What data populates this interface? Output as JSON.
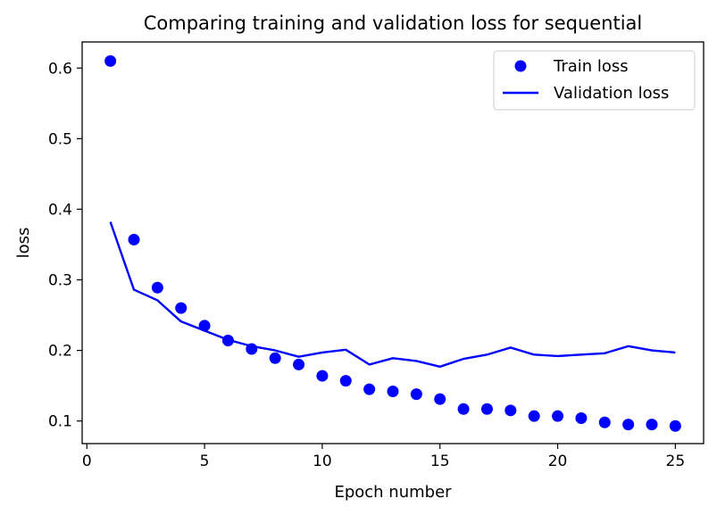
{
  "chart_data": {
    "type": "scatter",
    "title": "Comparing training and validation loss for sequential",
    "xlabel": "Epoch number",
    "ylabel": "loss",
    "xlim": [
      -0.2,
      26.2
    ],
    "ylim": [
      0.068,
      0.637
    ],
    "xticks": [
      0,
      5,
      10,
      15,
      20,
      25
    ],
    "yticks": [
      0.1,
      0.2,
      0.3,
      0.4,
      0.5,
      0.6
    ],
    "grid": false,
    "legend_position": "top-right",
    "colors": {
      "series": "#0000ff",
      "axis": "#000000",
      "background": "#ffffff"
    },
    "x": [
      1,
      2,
      3,
      4,
      5,
      6,
      7,
      8,
      9,
      10,
      11,
      12,
      13,
      14,
      15,
      16,
      17,
      18,
      19,
      20,
      21,
      22,
      23,
      24,
      25
    ],
    "series": [
      {
        "name": "Train loss",
        "style": "markers",
        "values": [
          0.61,
          0.357,
          0.289,
          0.26,
          0.235,
          0.214,
          0.202,
          0.189,
          0.18,
          0.164,
          0.157,
          0.145,
          0.142,
          0.138,
          0.131,
          0.117,
          0.117,
          0.115,
          0.107,
          0.107,
          0.104,
          0.098,
          0.095,
          0.095,
          0.093
        ]
      },
      {
        "name": "Validation loss",
        "style": "line",
        "values": [
          0.382,
          0.286,
          0.271,
          0.241,
          0.228,
          0.215,
          0.206,
          0.2,
          0.191,
          0.197,
          0.201,
          0.18,
          0.189,
          0.185,
          0.177,
          0.188,
          0.194,
          0.204,
          0.194,
          0.192,
          0.194,
          0.196,
          0.206,
          0.2,
          0.197
        ]
      }
    ]
  }
}
